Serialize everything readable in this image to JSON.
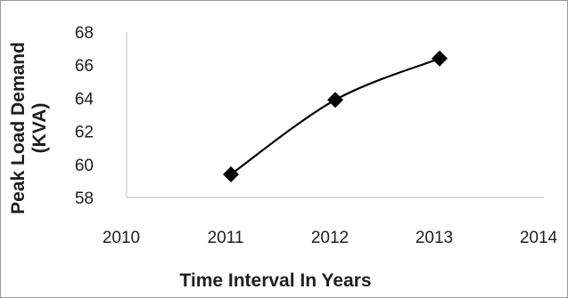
{
  "chart_data": {
    "type": "line",
    "title": "",
    "xlabel": "Time Interval In Years",
    "ylabel_lines": [
      "Peak Load Demand",
      "(KVA)"
    ],
    "x_ticks": [
      "2010",
      "2011",
      "2012",
      "2013",
      "2014"
    ],
    "y_ticks": [
      "58",
      "60",
      "62",
      "64",
      "66",
      "68"
    ],
    "xlim": [
      2010,
      2014
    ],
    "ylim": [
      58,
      68
    ],
    "grid": false,
    "legend": "none",
    "series": [
      {
        "x": [
          2011,
          2012,
          2013
        ],
        "y": [
          59.4,
          63.9,
          66.4
        ],
        "marker": "diamond",
        "color": "#000000"
      }
    ]
  }
}
